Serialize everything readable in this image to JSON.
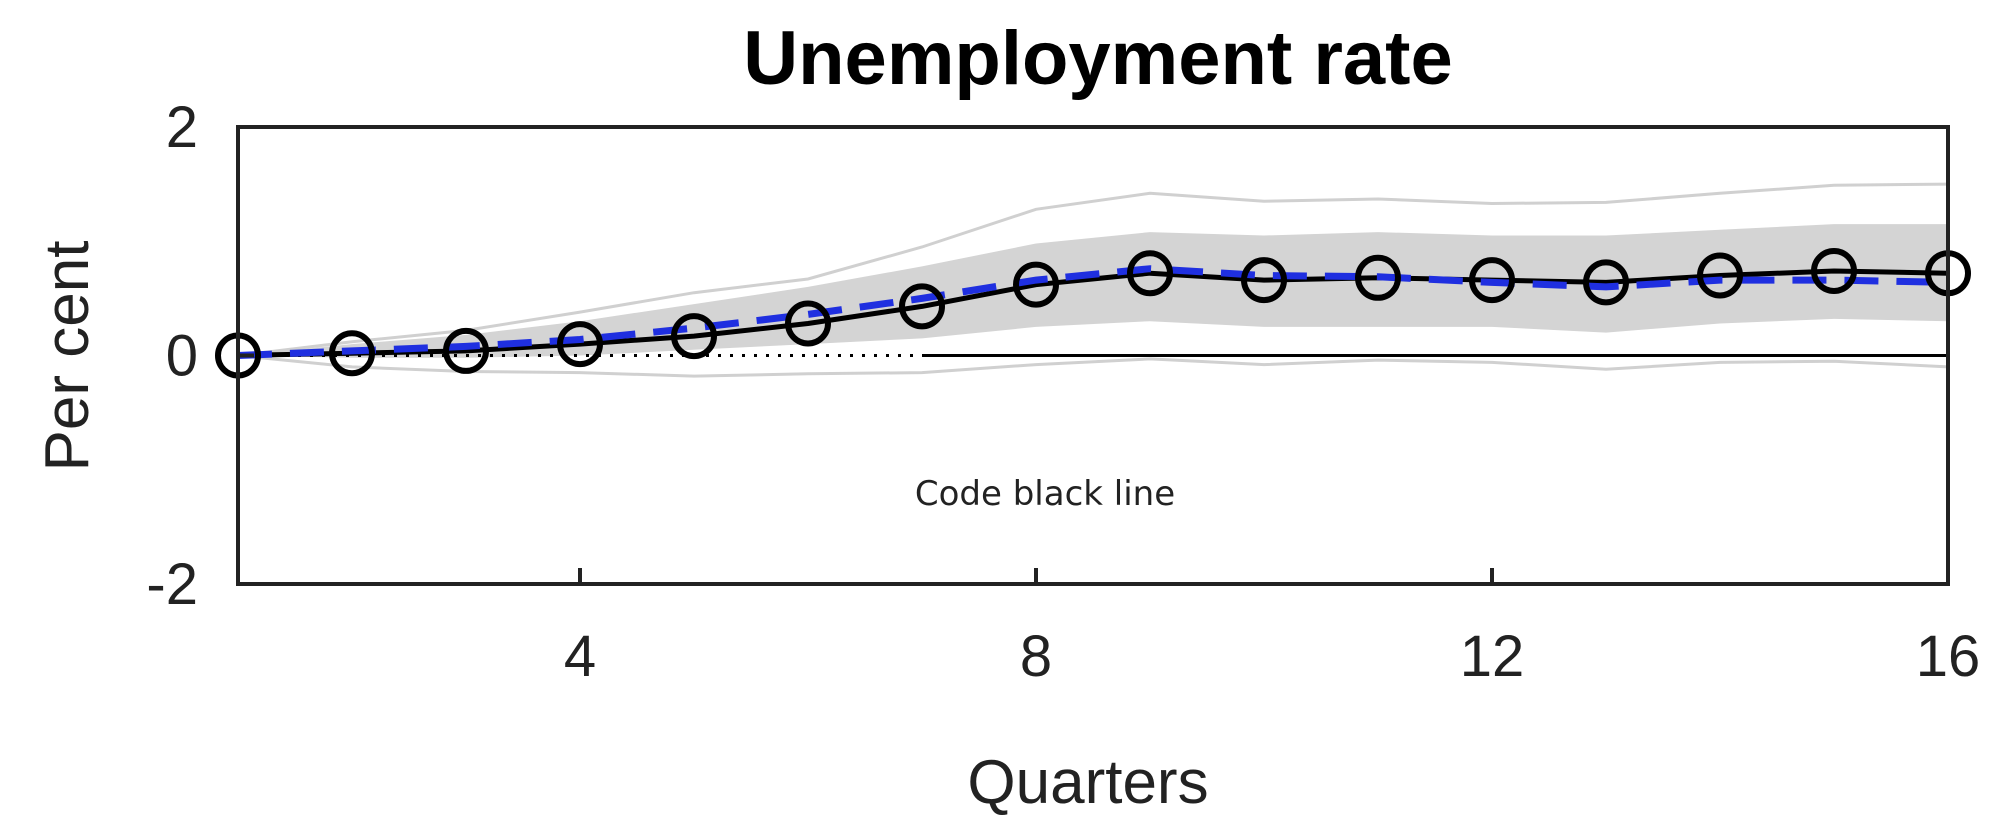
{
  "chart_data": {
    "type": "line",
    "title": "Unemployment rate",
    "xlabel": "Quarters",
    "ylabel": "Per cent",
    "annotation": "Code black line",
    "x": [
      1,
      2,
      3,
      4,
      5,
      6,
      7,
      8,
      9,
      10,
      11,
      12,
      13,
      14,
      15,
      16
    ],
    "xlim": [
      1,
      16
    ],
    "ylim": [
      -2,
      2
    ],
    "xticks": [
      4,
      8,
      12,
      16
    ],
    "yticks": [
      -2,
      0,
      2
    ],
    "series": [
      {
        "role": "main",
        "style": "solid-black-circles",
        "color": "#000000",
        "values": [
          0.0,
          0.02,
          0.04,
          0.1,
          0.17,
          0.28,
          0.43,
          0.62,
          0.72,
          0.66,
          0.68,
          0.66,
          0.64,
          0.7,
          0.74,
          0.72
        ]
      },
      {
        "role": "median",
        "style": "dashed",
        "color": "#1f2fe0",
        "values": [
          0.0,
          0.04,
          0.08,
          0.14,
          0.24,
          0.36,
          0.5,
          0.66,
          0.76,
          0.7,
          0.69,
          0.64,
          0.6,
          0.66,
          0.66,
          0.64
        ]
      },
      {
        "role": "band-upper",
        "style": "shaded",
        "color": "#d4d4d4",
        "values": [
          0.0,
          0.1,
          0.18,
          0.3,
          0.45,
          0.6,
          0.78,
          0.98,
          1.08,
          1.05,
          1.08,
          1.05,
          1.05,
          1.1,
          1.15,
          1.15
        ]
      },
      {
        "role": "band-lower",
        "style": "shaded",
        "color": "#d4d4d4",
        "values": [
          0.0,
          -0.02,
          -0.02,
          0.0,
          0.05,
          0.1,
          0.15,
          0.25,
          0.3,
          0.25,
          0.25,
          0.25,
          0.2,
          0.28,
          0.32,
          0.3
        ]
      },
      {
        "role": "outer-upper",
        "style": "thin-grey",
        "color": "#d0d0d0",
        "values": [
          0.0,
          0.12,
          0.22,
          0.38,
          0.55,
          0.67,
          0.95,
          1.28,
          1.42,
          1.35,
          1.37,
          1.33,
          1.34,
          1.42,
          1.49,
          1.5
        ]
      },
      {
        "role": "outer-lower",
        "style": "thin-grey",
        "color": "#d0d0d0",
        "values": [
          0.0,
          -0.1,
          -0.14,
          -0.15,
          -0.18,
          -0.16,
          -0.15,
          -0.08,
          -0.03,
          -0.08,
          -0.04,
          -0.06,
          -0.12,
          -0.06,
          -0.05,
          -0.1
        ]
      }
    ],
    "zero_line": {
      "y": 0,
      "style": "dotted-then-solid",
      "color": "#000000"
    }
  }
}
